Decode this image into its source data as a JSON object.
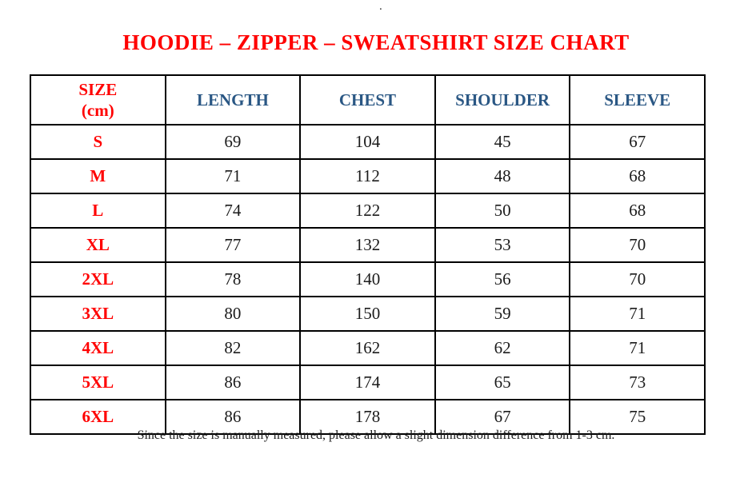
{
  "page": {
    "top_dot": ".",
    "title": "HOODIE – ZIPPER – SWEATSHIRT SIZE CHART",
    "footnote": "Since the size is manually measured, please allow a slight dimension difference from 1-3 cm."
  },
  "colors": {
    "title_red": "#ff0000",
    "size_label_red": "#ff0000",
    "header_blue": "#2a5784",
    "body_text": "#1b1b1b",
    "border": "#000000",
    "background": "#ffffff"
  },
  "table": {
    "header": {
      "size_label": "SIZE",
      "size_unit": "(cm)",
      "columns": [
        "LENGTH",
        "CHEST",
        "SHOULDER",
        "SLEEVE"
      ]
    },
    "rows": [
      {
        "size": "S",
        "length": "69",
        "chest": "104",
        "shoulder": "45",
        "sleeve": "67"
      },
      {
        "size": "M",
        "length": "71",
        "chest": "112",
        "shoulder": "48",
        "sleeve": "68"
      },
      {
        "size": "L",
        "length": "74",
        "chest": "122",
        "shoulder": "50",
        "sleeve": "68"
      },
      {
        "size": "XL",
        "length": "77",
        "chest": "132",
        "shoulder": "53",
        "sleeve": "70"
      },
      {
        "size": "2XL",
        "length": "78",
        "chest": "140",
        "shoulder": "56",
        "sleeve": "70"
      },
      {
        "size": "3XL",
        "length": "80",
        "chest": "150",
        "shoulder": "59",
        "sleeve": "71"
      },
      {
        "size": "4XL",
        "length": "82",
        "chest": "162",
        "shoulder": "62",
        "sleeve": "71"
      },
      {
        "size": "5XL",
        "length": "86",
        "chest": "174",
        "shoulder": "65",
        "sleeve": "73"
      },
      {
        "size": "6XL",
        "length": "86",
        "chest": "178",
        "shoulder": "67",
        "sleeve": "75"
      }
    ]
  }
}
